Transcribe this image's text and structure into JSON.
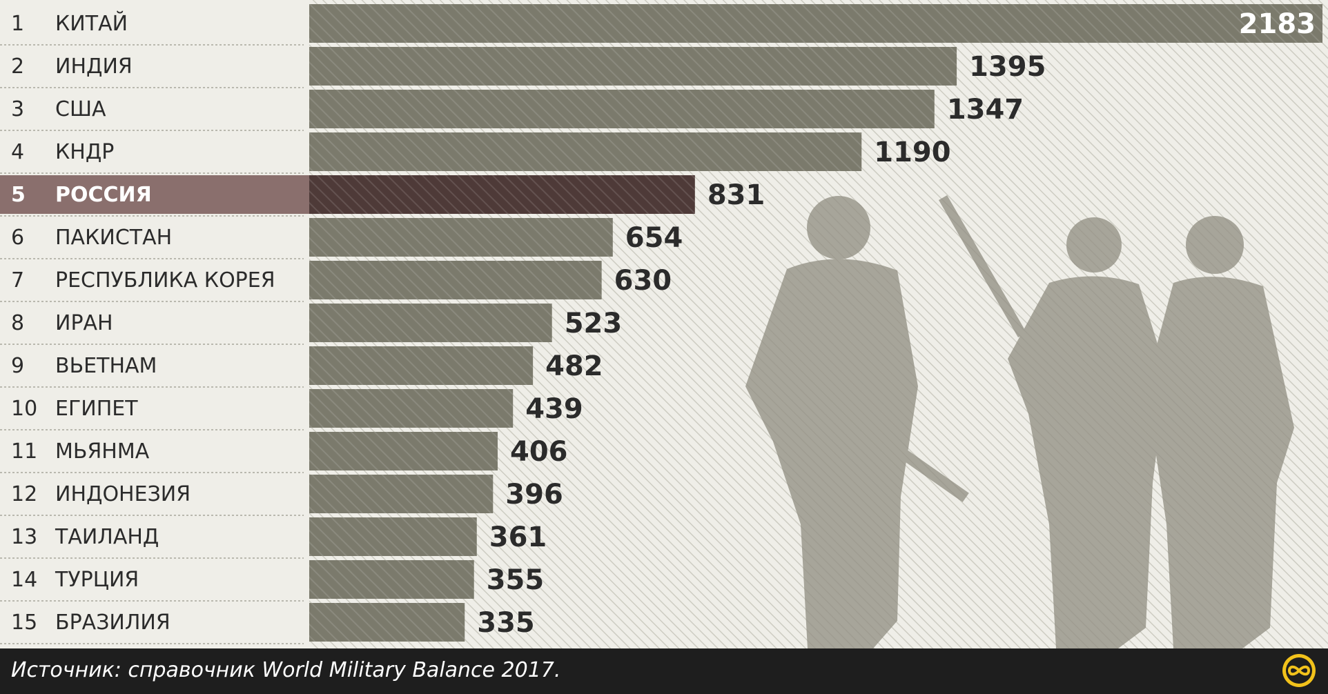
{
  "chart_data": {
    "type": "bar",
    "orientation": "horizontal",
    "ranks": [
      "1",
      "2",
      "3",
      "4",
      "5",
      "6",
      "7",
      "8",
      "9",
      "10",
      "11",
      "12",
      "13",
      "14",
      "15"
    ],
    "categories": [
      "КИТАЙ",
      "ИНДИЯ",
      "США",
      "КНДР",
      "РОССИЯ",
      "ПАКИСТАН",
      "РЕСПУБЛИКА КОРЕЯ",
      "ИРАН",
      "ВЬЕТНАМ",
      "ЕГИПЕТ",
      "МЬЯНМА",
      "ИНДОНЕЗИЯ",
      "ТАИЛАНД",
      "ТУРЦИЯ",
      "БРАЗИЛИЯ"
    ],
    "values": [
      2183,
      1395,
      1347,
      1190,
      831,
      654,
      630,
      523,
      482,
      439,
      406,
      396,
      361,
      355,
      335
    ],
    "value_labels": [
      "2183",
      "1395",
      "1347",
      "1190",
      "831",
      "654",
      "630",
      "523",
      "482",
      "439",
      "406",
      "396",
      "361",
      "355",
      "335"
    ],
    "highlighted_index": 4,
    "xlim": [
      0,
      2183
    ],
    "colors": {
      "bar": "#7b7a6c",
      "bar_highlight": "#4e3a38",
      "row_highlight": "#8a6f6d",
      "background": "#efeee8",
      "hatch": "#cfcec4",
      "label_text": "#2b2b2b",
      "value_text": "#2b2b2b",
      "value_text_first": "#ffffff"
    },
    "legend": "none",
    "grid": false
  },
  "footer": {
    "source_text": "Источник: справочник World Military Balance 2017.",
    "background_color": "#1e1e1e",
    "logo_icon": "infinity-logo-icon",
    "logo_color": "#f2c21b"
  }
}
